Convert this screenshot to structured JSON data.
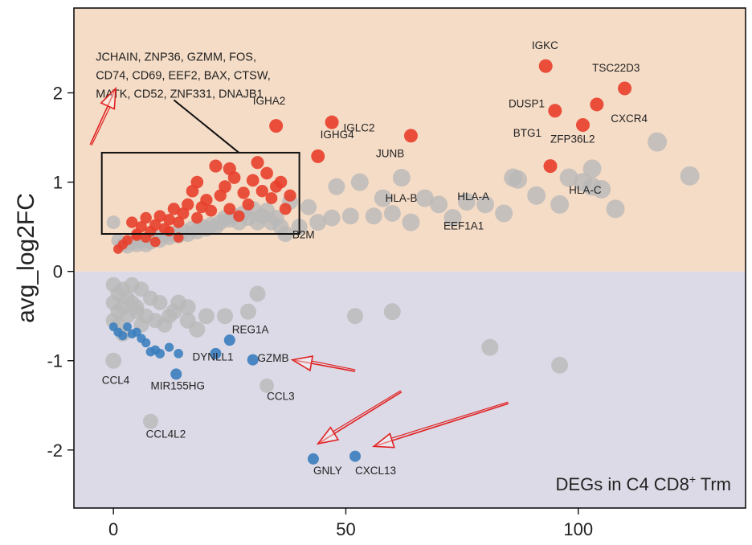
{
  "chart_data": {
    "type": "scatter",
    "ylabel": "avg_log2FC",
    "xlabel": "",
    "xlim": [
      -8.5,
      136
    ],
    "ylim": [
      -2.65,
      2.95
    ],
    "x_ticks": [
      0,
      50,
      100
    ],
    "y_ticks": [
      -2,
      -1,
      0,
      1,
      2
    ],
    "panel_label": "DEGs in C4 CD8",
    "panel_label_sup": "+",
    "panel_label_suffix": " Trm",
    "colors": {
      "up_background": "#f5dcc6",
      "down_background": "#dcdae6",
      "up_highlight": "#e8402c",
      "down_highlight": "#3d7fbf",
      "background_points": "#b8b8b8",
      "arrow": "#e02020"
    },
    "boxed_gene_list": [
      "JCHAIN, ZNP36, GZMM, FOS,",
      "CD74, CD69, EEF2, BAX, CTSW,",
      "MATK, CD52, ZNF331, DNAJB1"
    ],
    "box_region": {
      "x": [
        -2.5,
        40
      ],
      "y": [
        0.42,
        1.33
      ]
    },
    "labeled_genes": [
      {
        "name": "IGKC",
        "x": 93,
        "y": 2.3,
        "group": "up",
        "label_dx": -3,
        "label_dy": 0.19
      },
      {
        "name": "TSC22D3",
        "x": 110,
        "y": 2.05,
        "group": "up",
        "label_dx": -7,
        "label_dy": 0.19
      },
      {
        "name": "DUSP1",
        "x": 95,
        "y": 1.8,
        "group": "up",
        "label_dx": -10,
        "label_dy": 0.04
      },
      {
        "name": "CXCR4",
        "x": 104,
        "y": 1.87,
        "group": "up",
        "label_dx": 3,
        "label_dy": -0.2
      },
      {
        "name": "ZFP36L2",
        "x": 101,
        "y": 1.64,
        "group": "up",
        "label_dx": -7,
        "label_dy": -0.2
      },
      {
        "name": "BTG1",
        "x": 94,
        "y": 1.18,
        "group": "up",
        "label_dx": -8,
        "label_dy": 0.33
      },
      {
        "name": "IGHA2",
        "x": 35,
        "y": 1.63,
        "group": "up",
        "label_dx": -5,
        "label_dy": 0.24
      },
      {
        "name": "IGLC2",
        "x": 47,
        "y": 1.67,
        "group": "up",
        "label_dx": 2.5,
        "label_dy": -0.1
      },
      {
        "name": "IGHG4",
        "x": 44,
        "y": 1.29,
        "group": "up",
        "label_dx": 0.5,
        "label_dy": 0.2
      },
      {
        "name": "JUNB",
        "x": 64,
        "y": 1.52,
        "group": "up",
        "label_dx": -7.5,
        "label_dy": -0.24
      },
      {
        "name": "HLA-A",
        "x": 79,
        "y": 0.8,
        "group": "gray",
        "label_dx": -5,
        "label_dy": -0.0
      },
      {
        "name": "HLA-B",
        "x": 65,
        "y": 0.73,
        "group": "gray",
        "label_dx": -6.5,
        "label_dy": 0.05
      },
      {
        "name": "HLA-C",
        "x": 97,
        "y": 1.02,
        "group": "gray",
        "label_dx": 1,
        "label_dy": -0.15
      },
      {
        "name": "EEF1A1",
        "x": 76,
        "y": 0.62,
        "group": "gray",
        "label_dx": -5,
        "label_dy": -0.15
      },
      {
        "name": "B2M",
        "x": 37,
        "y": 0.33,
        "group": "gray",
        "label_dx": 1.5,
        "label_dy": 0.04
      },
      {
        "name": "REG1A",
        "x": 25,
        "y": -0.77,
        "group": "down",
        "label_dx": 0.5,
        "label_dy": 0.08
      },
      {
        "name": "GZMB",
        "x": 30,
        "y": -0.99,
        "group": "down",
        "label_dx": 1,
        "label_dy": -0.02
      },
      {
        "name": "DYNLL1",
        "x": 22,
        "y": -0.92,
        "group": "down",
        "label_dx": -5,
        "label_dy": -0.08
      },
      {
        "name": "MIR155HG",
        "x": 13.5,
        "y": -1.15,
        "group": "down",
        "label_dx": -5.5,
        "label_dy": -0.17
      },
      {
        "name": "CCL4",
        "x": 0,
        "y": -1.0,
        "group": "gray",
        "label_dx": -2.5,
        "label_dy": -0.26
      },
      {
        "name": "CCL3",
        "x": 33,
        "y": -1.28,
        "group": "gray",
        "label_dx": 0,
        "label_dy": -0.16
      },
      {
        "name": "CCL4L2",
        "x": 8,
        "y": -1.68,
        "group": "gray",
        "label_dx": -1,
        "label_dy": -0.18
      },
      {
        "name": "GNLY",
        "x": 43,
        "y": -2.1,
        "group": "down",
        "label_dx": 0,
        "label_dy": -0.17
      },
      {
        "name": "CXCL13",
        "x": 52,
        "y": -2.07,
        "group": "down",
        "label_dx": 0,
        "label_dy": -0.2
      }
    ],
    "up_points": [
      [
        1,
        0.25,
        0.4
      ],
      [
        2,
        0.3,
        0.45
      ],
      [
        3,
        0.35,
        0.5
      ],
      [
        4,
        0.55,
        0.7
      ],
      [
        5,
        0.42,
        0.6
      ],
      [
        6,
        0.5,
        0.65
      ],
      [
        7,
        0.38,
        0.55
      ],
      [
        7,
        0.6,
        0.7
      ],
      [
        8,
        0.45,
        0.6
      ],
      [
        9,
        0.52,
        0.7
      ],
      [
        10,
        0.62,
        0.75
      ],
      [
        11,
        0.48,
        0.65
      ],
      [
        12,
        0.58,
        0.7
      ],
      [
        13,
        0.7,
        0.8
      ],
      [
        14,
        0.55,
        0.7
      ],
      [
        15,
        0.65,
        0.75
      ],
      [
        16,
        0.75,
        0.8
      ],
      [
        17,
        0.9,
        0.85
      ],
      [
        18,
        0.6,
        0.7
      ],
      [
        18,
        1.0,
        0.85
      ],
      [
        19,
        0.72,
        0.75
      ],
      [
        20,
        0.8,
        0.8
      ],
      [
        21,
        0.68,
        0.75
      ],
      [
        22,
        1.18,
        0.9
      ],
      [
        23,
        0.85,
        0.8
      ],
      [
        24,
        0.95,
        0.85
      ],
      [
        25,
        0.7,
        0.75
      ],
      [
        25,
        1.15,
        0.9
      ],
      [
        26,
        1.05,
        0.85
      ],
      [
        27,
        0.62,
        0.7
      ],
      [
        28,
        0.88,
        0.8
      ],
      [
        29,
        0.75,
        0.75
      ],
      [
        30,
        1.02,
        0.85
      ],
      [
        31,
        1.22,
        0.9
      ],
      [
        32,
        0.9,
        0.8
      ],
      [
        33,
        1.1,
        0.85
      ],
      [
        34,
        0.82,
        0.75
      ],
      [
        35,
        0.95,
        0.8
      ],
      [
        36,
        1.0,
        0.85
      ],
      [
        37,
        0.7,
        0.75
      ],
      [
        38,
        0.85,
        0.8
      ],
      [
        5,
        0.4,
        0.55
      ],
      [
        9,
        0.33,
        0.5
      ],
      [
        12,
        0.45,
        0.55
      ],
      [
        14,
        0.38,
        0.5
      ]
    ],
    "down_points": [
      [
        0,
        -0.62,
        0.45
      ],
      [
        1,
        -0.68,
        0.5
      ],
      [
        2,
        -0.72,
        0.5
      ],
      [
        3,
        -0.62,
        0.45
      ],
      [
        4,
        -0.7,
        0.5
      ],
      [
        5,
        -0.68,
        0.5
      ],
      [
        6,
        -0.75,
        0.5
      ],
      [
        7,
        -0.8,
        0.5
      ],
      [
        8,
        -0.9,
        0.55
      ],
      [
        9,
        -0.88,
        0.55
      ],
      [
        10,
        -0.92,
        0.6
      ],
      [
        12,
        -0.85,
        0.5
      ],
      [
        14,
        -0.92,
        0.55
      ]
    ],
    "gray_points": [
      [
        0,
        0.55,
        0.7
      ],
      [
        1,
        0.35,
        0.7
      ],
      [
        2,
        0.3,
        0.8
      ],
      [
        3,
        0.28,
        0.8
      ],
      [
        4,
        0.32,
        0.9
      ],
      [
        5,
        0.3,
        0.9
      ],
      [
        6,
        0.34,
        0.9
      ],
      [
        7,
        0.3,
        0.9
      ],
      [
        8,
        0.33,
        0.9
      ],
      [
        9,
        0.38,
        0.9
      ],
      [
        10,
        0.35,
        0.9
      ],
      [
        11,
        0.4,
        0.9
      ],
      [
        12,
        0.38,
        0.9
      ],
      [
        13,
        0.42,
        1.0
      ],
      [
        14,
        0.4,
        0.9
      ],
      [
        15,
        0.45,
        1.0
      ],
      [
        16,
        0.42,
        1.0
      ],
      [
        17,
        0.48,
        1.0
      ],
      [
        18,
        0.45,
        1.0
      ],
      [
        19,
        0.5,
        1.0
      ],
      [
        20,
        0.48,
        1.0
      ],
      [
        21,
        0.52,
        1.0
      ],
      [
        22,
        0.5,
        1.0
      ],
      [
        23,
        0.55,
        1.0
      ],
      [
        24,
        0.6,
        1.0
      ],
      [
        25,
        0.58,
        1.0
      ],
      [
        26,
        0.62,
        1.0
      ],
      [
        27,
        0.55,
        1.0
      ],
      [
        28,
        0.65,
        1.0
      ],
      [
        29,
        0.6,
        1.0
      ],
      [
        30,
        0.7,
        1.0
      ],
      [
        31,
        0.55,
        1.0
      ],
      [
        32,
        0.62,
        1.0
      ],
      [
        33,
        0.68,
        1.0
      ],
      [
        34,
        0.55,
        1.0
      ],
      [
        35,
        0.6,
        1.0
      ],
      [
        36,
        0.5,
        1.0
      ],
      [
        37,
        0.42,
        1.0
      ],
      [
        38,
        0.78,
        1.0
      ],
      [
        40,
        0.5,
        1.0
      ],
      [
        42,
        0.72,
        1.0
      ],
      [
        44,
        0.55,
        1.1
      ],
      [
        47,
        0.6,
        1.1
      ],
      [
        48,
        0.95,
        1.1
      ],
      [
        51,
        0.62,
        1.1
      ],
      [
        53,
        1.0,
        1.2
      ],
      [
        56,
        0.62,
        1.1
      ],
      [
        58,
        0.82,
        1.2
      ],
      [
        60,
        0.65,
        1.1
      ],
      [
        62,
        1.05,
        1.2
      ],
      [
        64,
        0.55,
        1.2
      ],
      [
        67,
        0.82,
        1.2
      ],
      [
        70,
        0.75,
        1.2
      ],
      [
        73,
        0.6,
        1.2
      ],
      [
        76,
        0.78,
        1.2
      ],
      [
        80,
        0.75,
        1.2
      ],
      [
        84,
        0.65,
        1.2
      ],
      [
        86,
        1.05,
        1.3
      ],
      [
        87,
        1.03,
        1.3
      ],
      [
        91,
        0.85,
        1.3
      ],
      [
        96,
        0.75,
        1.3
      ],
      [
        98,
        1.05,
        1.3
      ],
      [
        101,
        1.0,
        1.3
      ],
      [
        103,
        1.15,
        1.3
      ],
      [
        105,
        0.92,
        1.3
      ],
      [
        108,
        0.7,
        1.3
      ],
      [
        117,
        1.45,
        1.4
      ],
      [
        124,
        1.07,
        1.4
      ],
      [
        103,
        0.95,
        1.3
      ],
      [
        0,
        -0.15,
        0.9
      ],
      [
        1,
        -0.25,
        0.9
      ],
      [
        2,
        -0.2,
        0.9
      ],
      [
        3,
        -0.3,
        0.9
      ],
      [
        0,
        -0.35,
        0.9
      ],
      [
        1,
        -0.45,
        0.9
      ],
      [
        2,
        -0.4,
        0.9
      ],
      [
        4,
        -0.35,
        0.9
      ],
      [
        3,
        -0.5,
        0.9
      ],
      [
        5,
        -0.45,
        0.9
      ],
      [
        6,
        -0.2,
        0.9
      ],
      [
        4,
        -0.15,
        0.9
      ],
      [
        0,
        -0.55,
        0.9
      ],
      [
        1,
        -0.6,
        0.9
      ],
      [
        7,
        -0.5,
        0.9
      ],
      [
        8,
        -0.3,
        0.9
      ],
      [
        9,
        -0.55,
        0.9
      ],
      [
        10,
        -0.35,
        0.9
      ],
      [
        11,
        -0.6,
        0.9
      ],
      [
        12,
        -0.5,
        0.9
      ],
      [
        14,
        -0.35,
        1.0
      ],
      [
        13,
        -0.45,
        1.0
      ],
      [
        16,
        -0.55,
        1.0
      ],
      [
        18,
        -0.65,
        1.0
      ],
      [
        20,
        -0.5,
        1.0
      ],
      [
        16,
        -0.4,
        1.0
      ],
      [
        24,
        -0.5,
        1.0
      ],
      [
        29,
        -0.45,
        1.0
      ],
      [
        31,
        -0.25,
        1.0
      ],
      [
        0,
        -1.0,
        1.0
      ],
      [
        5,
        -0.4,
        0.9
      ],
      [
        6,
        -0.6,
        0.9
      ],
      [
        2,
        -0.7,
        0.9
      ],
      [
        33,
        -1.28,
        0.8
      ],
      [
        8,
        -1.68,
        0.9
      ],
      [
        52,
        -0.5,
        1.0
      ],
      [
        60,
        -0.45,
        1.1
      ],
      [
        81,
        -0.85,
        1.1
      ],
      [
        96,
        -1.05,
        1.1
      ]
    ],
    "arrows": [
      {
        "from": [
          -5,
          1.42
        ],
        "to": [
          0.5,
          2.05
        ]
      },
      {
        "from": [
          52,
          -1.12
        ],
        "to": [
          38.5,
          -0.99
        ]
      },
      {
        "from": [
          62,
          -1.35
        ],
        "to": [
          44,
          -1.93
        ]
      },
      {
        "from": [
          85,
          -1.48
        ],
        "to": [
          56,
          -1.96
        ]
      }
    ]
  }
}
